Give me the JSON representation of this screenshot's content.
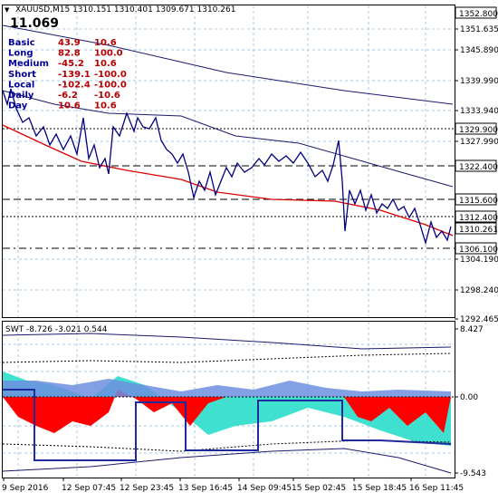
{
  "header": {
    "dropdown_glyph": "▼",
    "text": "XAUUSD,M15  1310.151 1310.401 1309.671 1310.261"
  },
  "big_value": "11.069",
  "stats": [
    {
      "label": "Basic",
      "v1": "43.9",
      "v2": "10.6"
    },
    {
      "label": "Long",
      "v1": "82.8",
      "v2": "100.0"
    },
    {
      "label": "Medium",
      "v1": "-45.2",
      "v2": "10.6"
    },
    {
      "label": "Short",
      "v1": "-139.1",
      "v2": "-100.0"
    },
    {
      "label": "Local",
      "v1": "-102.4",
      "v2": "-100.0"
    },
    {
      "label": "Daily",
      "v1": "-6.2",
      "v2": "-10.6"
    },
    {
      "label": "Day",
      "v1": "10.6",
      "v2": "10.6"
    }
  ],
  "price_axis": {
    "ticks": [
      "1351.635",
      "1345.890",
      "1339.990",
      "1333.940",
      "1327.990",
      "1304.190",
      "1298.240",
      "1292.465"
    ],
    "boxes": [
      {
        "value": "1352.800",
        "bg": "#ffffff",
        "fg": "#000000"
      },
      {
        "value": "1329.900",
        "bg": "#ffffff",
        "fg": "#000000"
      },
      {
        "value": "1322.400",
        "bg": "#ffffff",
        "fg": "#000000"
      },
      {
        "value": "1315.600",
        "bg": "#ffffff",
        "fg": "#000000"
      },
      {
        "value": "1312.400",
        "bg": "#ffffff",
        "fg": "#000000"
      },
      {
        "value": "1310.261",
        "bg": "#ffffff",
        "fg": "#000000"
      },
      {
        "value": "1306.100",
        "bg": "#ffffff",
        "fg": "#000000"
      }
    ]
  },
  "indicator": {
    "title": "SWT -8.726 -3.021 0.544",
    "ticks": [
      "8.427",
      "0.00",
      "-9.543"
    ]
  },
  "time_axis": [
    "9 Sep 2016",
    "12 Sep 07:45",
    "12 Sep 23:45",
    "13 Sep 16:45",
    "14 Sep 09:45",
    "15 Sep 02:45",
    "15 Sep 18:45",
    "16 Sep 11:45"
  ],
  "colors": {
    "price_line": "#00007f",
    "ma_red": "#dd0000",
    "ma_navy": "#1a1a6e",
    "grid": "#a8c8e0",
    "label_blue": "#000099",
    "value_red": "#b40000",
    "fill_red": "#ff0000",
    "fill_blue": "#6d8fe0",
    "fill_cyan": "#40e0d0"
  }
}
